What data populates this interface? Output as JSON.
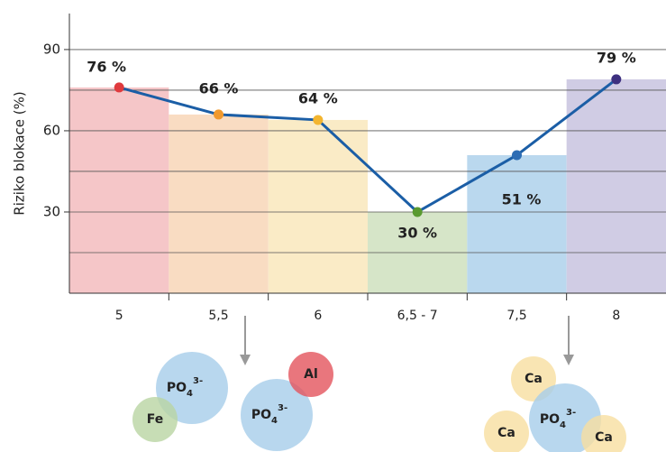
{
  "chart_data": {
    "type": "bar-line",
    "y_label": "Riziko blokace (%)",
    "categories": [
      "5",
      "5,5",
      "6",
      "6,5 - 7",
      "7,5",
      "8"
    ],
    "values": [
      76,
      66,
      64,
      30,
      51,
      79
    ],
    "value_labels": [
      "76 %",
      "66 %",
      "64 %",
      "30 %",
      "51 %",
      "79 %"
    ],
    "bar_colors": [
      "#f5c6c8",
      "#f9dcc2",
      "#faebc6",
      "#d6e5c8",
      "#bad8ee",
      "#d0cce4"
    ],
    "point_colors": [
      "#e03a3e",
      "#f0992e",
      "#f3b52f",
      "#5a9a30",
      "#2e6db4",
      "#3d3080"
    ],
    "line_color": "#1b5ea6",
    "ylim": [
      0,
      103.3
    ],
    "yticks": [
      30,
      60,
      90
    ],
    "minor_yticks": [
      15,
      45,
      75
    ],
    "grid": true,
    "ion_groups": [
      [
        {
          "text": "PO",
          "sub": "4",
          "sup": "3-"
        },
        {
          "text": "Fe"
        },
        {
          "text": "PO",
          "sub": "4",
          "sup": "3-"
        },
        {
          "text": "Al"
        }
      ],
      [
        {
          "text": "Ca"
        },
        {
          "text": "PO",
          "sub": "4",
          "sup": "3-"
        },
        {
          "text": "Ca"
        },
        {
          "text": "Ca"
        }
      ]
    ]
  }
}
